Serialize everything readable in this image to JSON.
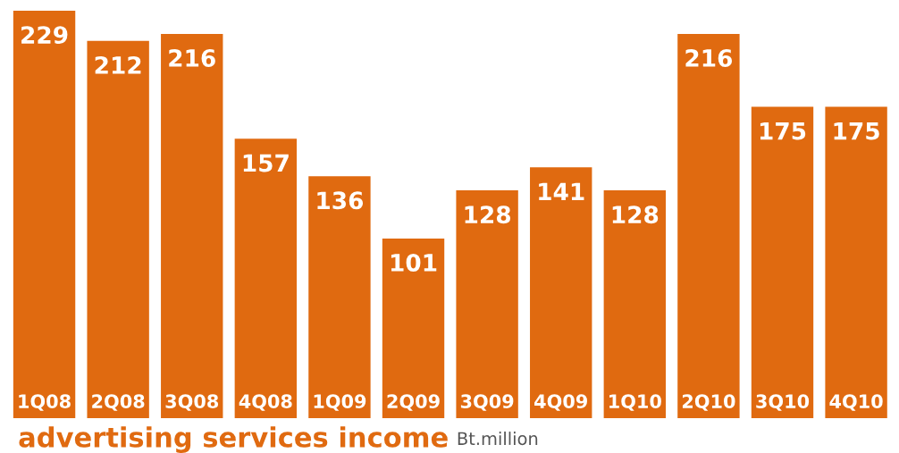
{
  "chart_data": {
    "type": "bar",
    "title": "advertising services income",
    "subtitle": "Bt.million",
    "categories": [
      "1Q08",
      "2Q08",
      "3Q08",
      "4Q08",
      "1Q09",
      "2Q09",
      "3Q09",
      "4Q09",
      "1Q10",
      "2Q10",
      "3Q10",
      "4Q10"
    ],
    "values": [
      229,
      212,
      216,
      157,
      136,
      101,
      128,
      141,
      128,
      216,
      175,
      175
    ],
    "color": "#e06a10",
    "data_labels": true
  }
}
